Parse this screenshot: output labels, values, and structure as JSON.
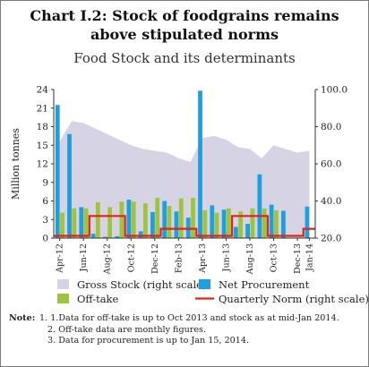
{
  "title_line1": "Chart I.2: Stock of foodgrains remains",
  "title_line2": "above stipulated norms",
  "subtitle": "Food Stock and its determinants",
  "colors": {
    "gross_stock": "#d6d3e4",
    "net_procurement": "#1f9ee0",
    "offtake": "#9ec43c",
    "quarterly_norm": "#e2231a",
    "frame": "#7a7a7a"
  },
  "chart_data": {
    "type": "bar",
    "ylabel": "Million tonnes",
    "ylim": [
      0,
      24
    ],
    "yticks": [
      0,
      3,
      6,
      9,
      12,
      15,
      18,
      21,
      24
    ],
    "y2lim": [
      20,
      100
    ],
    "y2ticks": [
      "20.0",
      "40.0",
      "60.0",
      "80.0",
      "100.0"
    ],
    "grid": false,
    "legend_position": "bottom",
    "categories": [
      "Apr-12",
      "May-12",
      "Jun-12",
      "Jul-12",
      "Aug-12",
      "Sep-12",
      "Oct-12",
      "Nov-12",
      "Dec-12",
      "Jan-13",
      "Feb-13",
      "Mar-13",
      "Apr-13",
      "May-13",
      "Jun-13",
      "Jul-13",
      "Aug-13",
      "Sep-13",
      "Oct-13",
      "Nov-13",
      "Dec-13",
      "Jan-14"
    ],
    "xtick_labels": [
      "Apr-12",
      "Jun-12",
      "Aug-12",
      "Oct-12",
      "Dec-12",
      "Feb-13",
      "Apr-13",
      "Jun-13",
      "Aug-13",
      "Oct-13",
      "Dec-13",
      "Jan-14"
    ],
    "xtick_indices": [
      0,
      2,
      4,
      6,
      8,
      10,
      12,
      14,
      16,
      18,
      20,
      21
    ],
    "series": [
      {
        "name": "Gross Stock (right scale)",
        "kind": "area",
        "axis": "right",
        "values": [
          72,
          83,
          82,
          79,
          76,
          73,
          70,
          68,
          67,
          66,
          63,
          61,
          74,
          75,
          73,
          69,
          68,
          63,
          70,
          68,
          66,
          67
        ]
      },
      {
        "name": "Net Procurement",
        "kind": "bar",
        "axis": "left",
        "values": [
          21.5,
          16.8,
          5.0,
          0.7,
          0.2,
          0.3,
          6.2,
          1.1,
          4.2,
          6.0,
          4.3,
          3.3,
          23.8,
          5.3,
          4.6,
          1.8,
          2.3,
          10.3,
          5.4,
          4.4,
          0.0,
          5.1
        ]
      },
      {
        "name": "Off-take",
        "kind": "bar",
        "axis": "left",
        "values": [
          4.1,
          4.8,
          4.8,
          5.8,
          5.0,
          5.9,
          5.9,
          5.6,
          6.5,
          5.2,
          6.4,
          6.5,
          4.5,
          4.1,
          4.8,
          4.3,
          4.8,
          4.8,
          4.5,
          0,
          0,
          0
        ]
      },
      {
        "name": "Quarterly Norm (right scale)",
        "kind": "line",
        "axis": "right",
        "values": [
          21.2,
          21.2,
          21.2,
          31.9,
          31.9,
          31.9,
          21.2,
          21.2,
          21.2,
          25.0,
          25.0,
          25.0,
          21.2,
          21.2,
          21.2,
          31.9,
          31.9,
          31.9,
          21.2,
          21.2,
          21.2,
          25.0
        ]
      }
    ]
  },
  "notes": {
    "lead": "Note:",
    "items": [
      "1. 1.Data for off-take is up to Oct 2013 and stock as at mid-Jan  2014.",
      "2. Off-take data are monthly figures.",
      "3. Data for procurement is up to Jan 15, 2014."
    ]
  }
}
